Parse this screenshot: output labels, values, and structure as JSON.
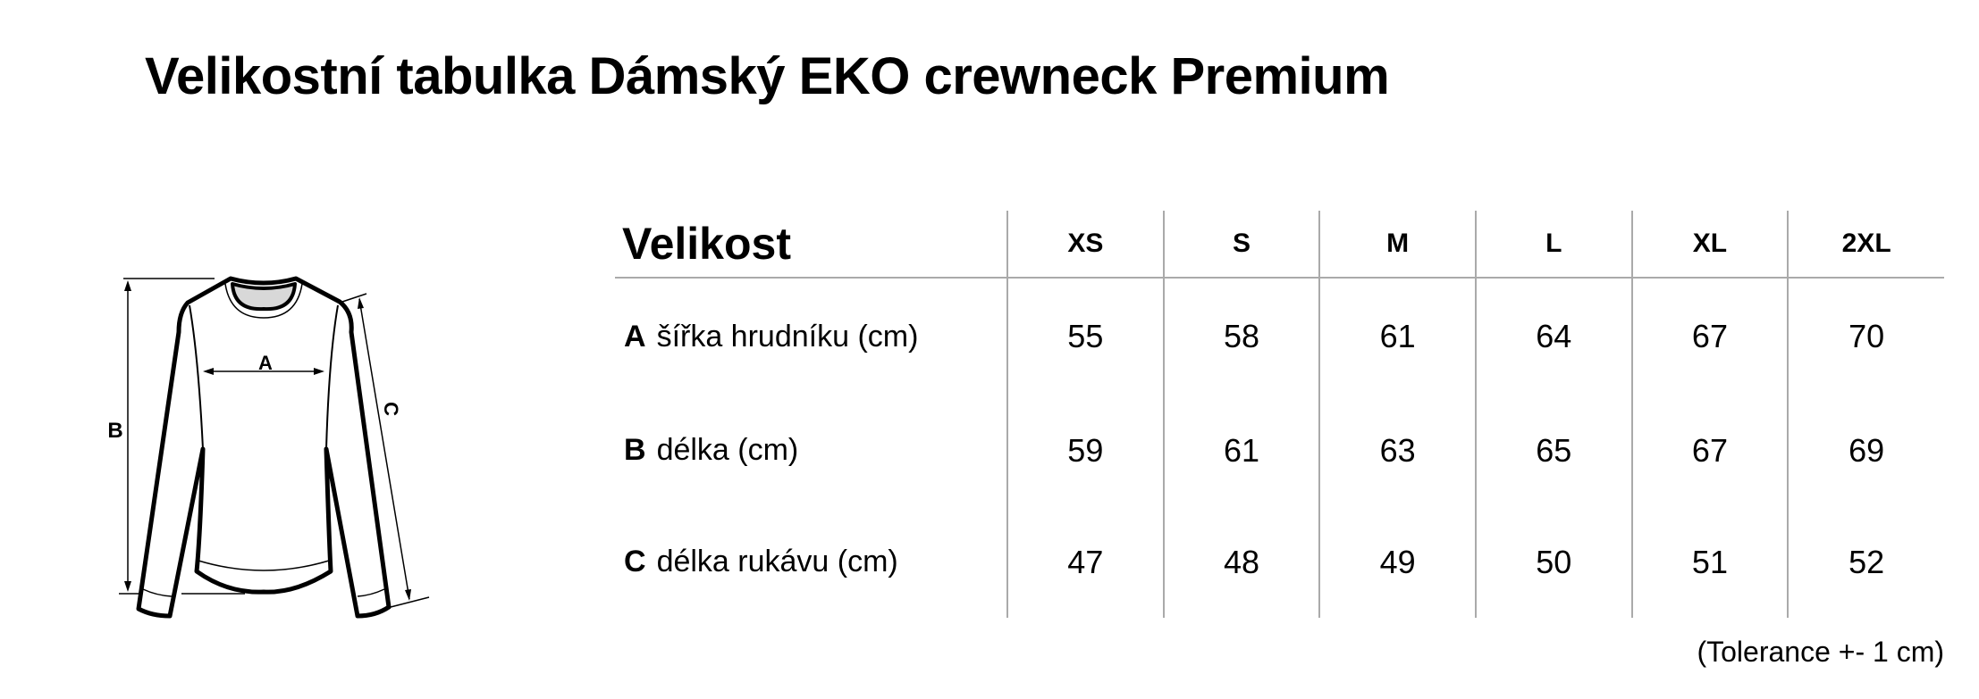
{
  "title": "Velikostní tabulka Dámský EKO crewneck Premium",
  "diagram": {
    "label_a": "A",
    "label_b": "B",
    "label_c": "C"
  },
  "table": {
    "header": "Velikost",
    "sizes": [
      "XS",
      "S",
      "M",
      "L",
      "XL",
      "2XL"
    ],
    "rows": [
      {
        "key": "A",
        "label": "šířka hrudníku (cm)",
        "values": [
          "55",
          "58",
          "61",
          "64",
          "67",
          "70"
        ]
      },
      {
        "key": "B",
        "label": "délka (cm)",
        "values": [
          "59",
          "61",
          "63",
          "65",
          "67",
          "69"
        ]
      },
      {
        "key": "C",
        "label": "délka rukávu (cm)",
        "values": [
          "47",
          "48",
          "49",
          "50",
          "51",
          "52"
        ]
      }
    ]
  },
  "tolerance": "(Tolerance +- 1 cm)"
}
